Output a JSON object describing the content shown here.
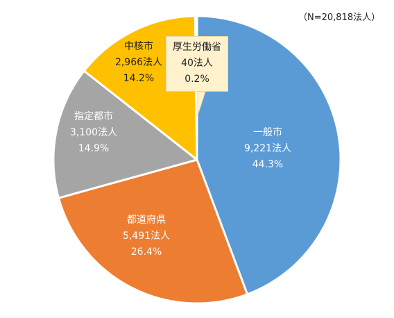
{
  "note": "（N=20,818法人）",
  "chart_data": {
    "type": "pie",
    "title": "",
    "start_angle_deg": 0,
    "direction": "clockwise",
    "slices": [
      {
        "name": "一般市",
        "count": "9,221法人",
        "percent": "44.3%",
        "value": 44.3,
        "color": "#5b9bd5",
        "label_class": "light"
      },
      {
        "name": "都道府県",
        "count": "5,491法人",
        "percent": "26.4%",
        "value": 26.4,
        "color": "#ed7d31",
        "label_class": "light"
      },
      {
        "name": "指定都市",
        "count": "3,100法人",
        "percent": "14.9%",
        "value": 14.9,
        "color": "#a5a5a5",
        "label_class": "light"
      },
      {
        "name": "中核市",
        "count": "2,966法人",
        "percent": "14.2%",
        "value": 14.2,
        "color": "#ffc000",
        "label_class": "dark"
      },
      {
        "name": "厚生労働省",
        "count": "40法人",
        "percent": "0.2%",
        "value": 0.2,
        "color": "#4472c4",
        "label_class": "callout"
      }
    ]
  }
}
